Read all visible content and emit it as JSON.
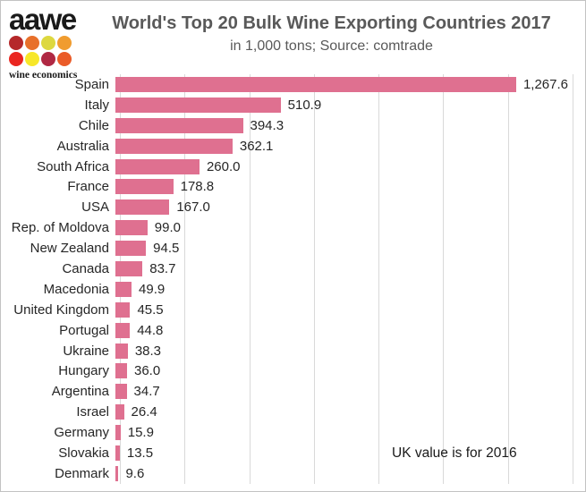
{
  "logo": {
    "wordmark": "aawe",
    "tagline": "wine economics",
    "dot_colors": [
      "#b5282a",
      "#e8702a",
      "#ddd83f",
      "#f09c2f",
      "#ea2620",
      "#f7e729",
      "#b02843",
      "#ea5b28"
    ]
  },
  "header": {
    "title": "World's Top 20 Bulk Wine Exporting Countries 2017",
    "subtitle": "in 1,000 tons; Source: comtrade"
  },
  "annotation": "UK value is for 2016",
  "colors": {
    "bar": "#df7090",
    "gridline": "#d9d9d9",
    "title_text": "#595959",
    "label_text": "#262626"
  },
  "chart_data": {
    "type": "bar",
    "orientation": "horizontal",
    "title": "World's Top 20 Bulk Wine Exporting Countries 2017",
    "subtitle": "in 1,000 tons; Source: comtrade",
    "xlabel": "",
    "ylabel": "",
    "xlim": [
      0,
      1400
    ],
    "gridline_step": 200,
    "grid": true,
    "legend": false,
    "categories": [
      "Spain",
      "Italy",
      "Chile",
      "Australia",
      "South Africa",
      "France",
      "USA",
      "Rep. of Moldova",
      "New Zealand",
      "Canada",
      "Macedonia",
      "United Kingdom",
      "Portugal",
      "Ukraine",
      "Hungary",
      "Argentina",
      "Israel",
      "Germany",
      "Slovakia",
      "Denmark"
    ],
    "values": [
      1267.6,
      510.9,
      394.3,
      362.1,
      260.0,
      178.8,
      167.0,
      99.0,
      94.5,
      83.7,
      49.9,
      45.5,
      44.8,
      38.3,
      36.0,
      34.7,
      26.4,
      15.9,
      13.5,
      9.6
    ],
    "value_labels": [
      "1,267.6",
      "510.9",
      "394.3",
      "362.1",
      "260.0",
      "178.8",
      "167.0",
      "99.0",
      "94.5",
      "83.7",
      "49.9",
      "45.5",
      "44.8",
      "38.3",
      "36.0",
      "34.7",
      "26.4",
      "15.9",
      "13.5",
      "9.6"
    ],
    "annotations": [
      "UK value is for 2016"
    ]
  }
}
